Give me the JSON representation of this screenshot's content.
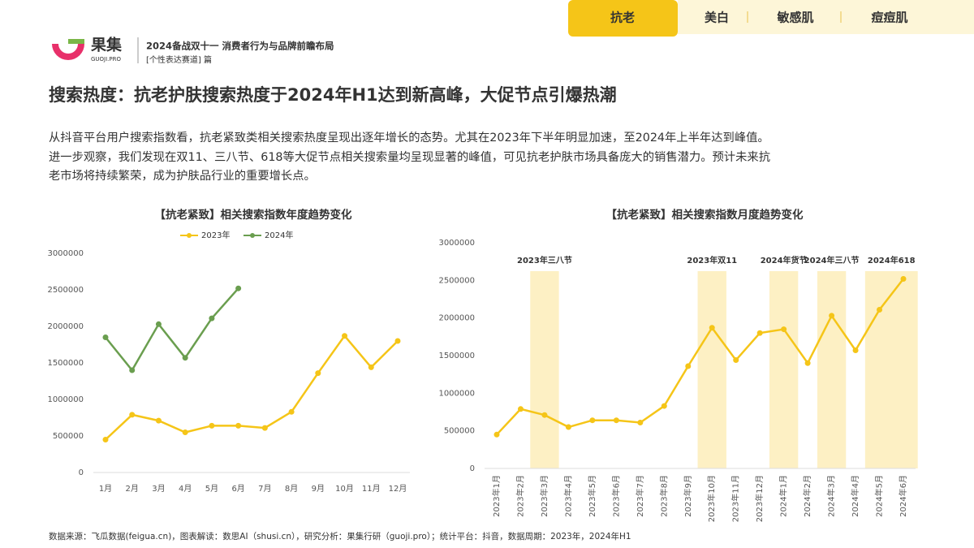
{
  "header": {
    "brand": "果集",
    "brand_sub": "GUOJI.PRO",
    "report": "2024备战双十一 消费者行为与品牌前瞻布局",
    "section": "[个性表达赛道] 篇"
  },
  "tabs": [
    "抗老",
    "美白",
    "敏感肌",
    "痘痘肌"
  ],
  "headline": "搜索热度：抗老护肤搜索热度于2024年H1达到新高峰，大促节点引爆热潮",
  "body": [
    "从抖音平台用户搜索指数看，抗老紧致类相关搜索热度呈现出逐年增长的态势。尤其在2023年下半年明显加速，至2024年上半年达到峰值。",
    "进一步观察，我们发现在双11、三八节、618等大促节点相关搜索量均呈现显著的峰值，可见抗老护肤市场具备庞大的销售潜力。预计未来抗",
    "老市场将持续繁荣，成为护肤品行业的重要增长点。"
  ],
  "footer": "数据来源：飞瓜数据(feigua.cn)，图表解读：数思AI（shusi.cn），研究分析：果集行研（guoji.pro）；统计平台：抖音，数据周期：2023年，2024年H1",
  "chart_data": [
    {
      "type": "line",
      "title": "【抗老紧致】相关搜索指数年度趋势变化",
      "categories": [
        "1月",
        "2月",
        "3月",
        "4月",
        "5月",
        "6月",
        "7月",
        "8月",
        "9月",
        "10月",
        "11月",
        "12月"
      ],
      "series": [
        {
          "name": "2023年",
          "color": "#f5c518",
          "values": [
            450000,
            790000,
            710000,
            550000,
            640000,
            640000,
            610000,
            830000,
            1360000,
            1870000,
            1440000,
            1800000
          ]
        },
        {
          "name": "2024年",
          "color": "#6a9e4f",
          "values": [
            1850000,
            1400000,
            2030000,
            1570000,
            2110000,
            2520000,
            null,
            null,
            null,
            null,
            null,
            null
          ]
        }
      ],
      "ylim": [
        0,
        3000000
      ],
      "yticks": [
        0,
        500000,
        1000000,
        1500000,
        2000000,
        2500000,
        3000000
      ],
      "legend": "top"
    },
    {
      "type": "line",
      "title": "【抗老紧致】相关搜索指数月度趋势变化",
      "categories": [
        "2023年1月",
        "2023年2月",
        "2023年3月",
        "2023年4月",
        "2023年5月",
        "2023年6月",
        "2023年7月",
        "2023年8月",
        "2023年9月",
        "2023年10月",
        "2023年11月",
        "2023年12月",
        "2024年1月",
        "2024年2月",
        "2024年3月",
        "2024年4月",
        "2024年5月",
        "2024年6月"
      ],
      "series": [
        {
          "color": "#f5c518",
          "values": [
            450000,
            790000,
            710000,
            550000,
            640000,
            640000,
            610000,
            830000,
            1360000,
            1870000,
            1440000,
            1800000,
            1850000,
            1400000,
            2030000,
            1570000,
            2110000,
            2520000
          ]
        }
      ],
      "annotations": [
        {
          "label": "2023年三八节",
          "from": "2023年3月",
          "to": "2023年3月"
        },
        {
          "label": "2023年双11",
          "from": "2023年10月",
          "to": "2023年10月"
        },
        {
          "label": "2024年货节",
          "from": "2024年1月",
          "to": "2024年1月"
        },
        {
          "label": "2024年三八节",
          "from": "2024年3月",
          "to": "2024年3月"
        },
        {
          "label": "2024年618",
          "from": "2024年5月",
          "to": "2024年6月"
        }
      ],
      "band_color": "#fdf0c4",
      "ylim": [
        0,
        3000000
      ],
      "yticks": [
        0,
        500000,
        1000000,
        1500000,
        2000000,
        2500000,
        3000000
      ]
    }
  ]
}
